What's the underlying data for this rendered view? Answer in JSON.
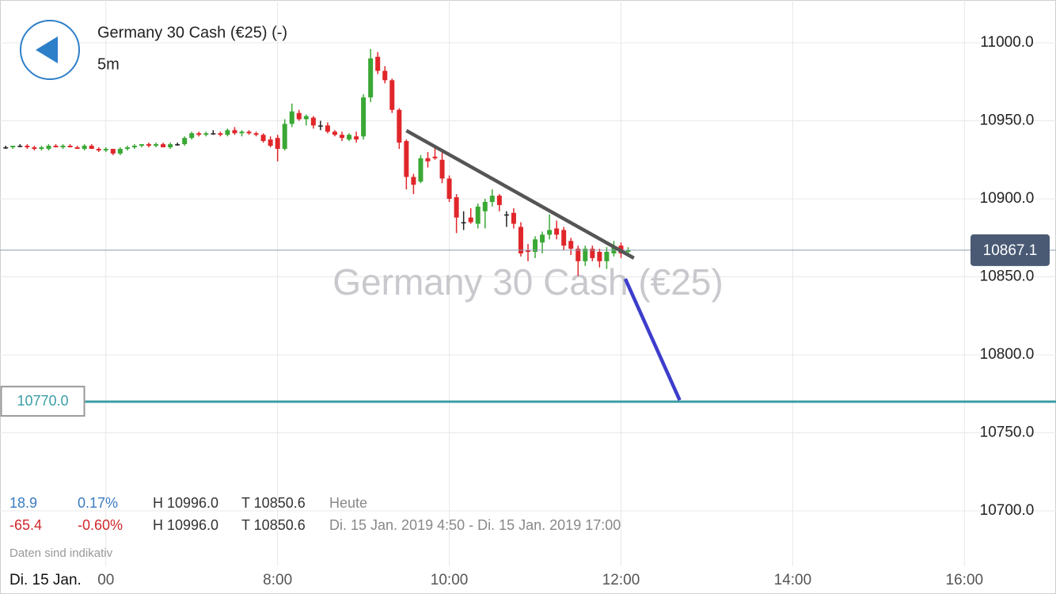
{
  "header": {
    "title": "Germany 30 Cash (€25) (-)",
    "interval": "5m",
    "watermark": "Germany 30 Cash (€25)"
  },
  "stats": [
    [
      "18.9",
      "0.17%",
      "H 10996.0",
      "T 10850.6",
      "Heute"
    ],
    [
      "-65.4",
      "-0.60%",
      "H 10996.0",
      "T 10850.6",
      "Di. 15 Jan. 2019 4:50 - Di. 15 Jan. 2019 17:00"
    ]
  ],
  "note": "Daten sind indikativ",
  "date_label": "Di. 15 Jan.",
  "chart_data": {
    "type": "candlestick",
    "x": [
      "4:50",
      "4:55",
      "5:00",
      "5:05",
      "5:10",
      "5:15",
      "5:20",
      "5:25",
      "5:30",
      "5:35",
      "5:40",
      "5:45",
      "5:50",
      "5:55",
      "6:00",
      "6:05",
      "6:10",
      "6:15",
      "6:20",
      "6:25",
      "6:30",
      "6:35",
      "6:40",
      "6:45",
      "6:50",
      "6:55",
      "7:00",
      "7:05",
      "7:10",
      "7:15",
      "7:20",
      "7:25",
      "7:30",
      "7:35",
      "7:40",
      "7:45",
      "7:50",
      "7:55",
      "8:00",
      "8:05",
      "8:10",
      "8:15",
      "8:20",
      "8:25",
      "8:30",
      "8:35",
      "8:40",
      "8:45",
      "8:50",
      "8:55",
      "9:00",
      "9:05",
      "9:10",
      "9:15",
      "9:20",
      "9:25",
      "9:30",
      "9:35",
      "9:40",
      "9:45",
      "9:50",
      "9:55",
      "10:00",
      "10:05",
      "10:10",
      "10:15",
      "10:20",
      "10:25",
      "10:30",
      "10:35",
      "10:40",
      "10:45",
      "10:50",
      "10:55",
      "11:00",
      "11:05",
      "11:10",
      "11:15",
      "11:20",
      "11:25",
      "11:30",
      "11:35",
      "11:40",
      "11:45",
      "11:50",
      "11:55",
      "12:00",
      "12:05"
    ],
    "open": [
      10933,
      10933,
      10934,
      10934,
      10933,
      10932,
      10932,
      10934,
      10933,
      10934,
      10933,
      10932,
      10934,
      10932,
      10931,
      10932,
      10929,
      10932,
      10933,
      10934,
      10935,
      10934,
      10935,
      10933,
      10935,
      10935,
      10939,
      10942,
      10941,
      10942,
      10942,
      10941,
      10944,
      10942,
      10943,
      10942,
      10941,
      10938,
      10939,
      10932,
      10948,
      10955,
      10951,
      10952,
      10947,
      10947,
      10943,
      10941,
      10938,
      10940,
      10940,
      10965,
      10991,
      10982,
      10976,
      10957,
      10937,
      10914,
      10911,
      10926,
      10927,
      10925,
      10913,
      10901,
      10885,
      10888,
      10884,
      10892,
      10898,
      10902,
      10890,
      10891,
      10882,
      10867,
      10866,
      10872,
      10877,
      10881,
      10880,
      10873,
      10868,
      10860,
      10868,
      10866,
      10860,
      10865,
      10870,
      10866
    ],
    "high": [
      10934,
      10934,
      10935,
      10935,
      10934,
      10934,
      10935,
      10935,
      10935,
      10935,
      10934,
      10935,
      10935,
      10933,
      10933,
      10932,
      10933,
      10934,
      10935,
      10935,
      10936,
      10936,
      10936,
      10936,
      10936,
      10940,
      10943,
      10943,
      10943,
      10944,
      10943,
      10945,
      10946,
      10944,
      10944,
      10943,
      10942,
      10940,
      10941,
      10951,
      10961,
      10957,
      10954,
      10953,
      10950,
      10949,
      10944,
      10943,
      10942,
      10943,
      10967,
      10996,
      10994,
      10985,
      10977,
      10958,
      10938,
      10916,
      10928,
      10930,
      10933,
      10931,
      10915,
      10903,
      10892,
      10894,
      10897,
      10900,
      10906,
      10903,
      10892,
      10894,
      10885,
      10871,
      10876,
      10879,
      10890,
      10886,
      10882,
      10875,
      10870,
      10870,
      10870,
      10868,
      10869,
      10873,
      10872,
      10869
    ],
    "low": [
      10932,
      10932,
      10933,
      10932,
      10931,
      10931,
      10931,
      10933,
      10932,
      10933,
      10932,
      10931,
      10932,
      10930,
      10930,
      10928,
      10928,
      10931,
      10932,
      10933,
      10933,
      10933,
      10933,
      10932,
      10934,
      10934,
      10938,
      10940,
      10940,
      10941,
      10940,
      10940,
      10941,
      10940,
      10941,
      10940,
      10936,
      10933,
      10924,
      10931,
      10946,
      10950,
      10947,
      10945,
      10944,
      10942,
      10940,
      10937,
      10937,
      10936,
      10938,
      10962,
      10980,
      10974,
      10955,
      10932,
      10906,
      10903,
      10910,
      10920,
      10925,
      10910,
      10898,
      10878,
      10880,
      10884,
      10881,
      10881,
      10895,
      10892,
      10882,
      10881,
      10863,
      10860,
      10862,
      10865,
      10874,
      10874,
      10867,
      10864,
      10850.6,
      10857,
      10860,
      10856,
      10855,
      10863,
      10862,
      10865
    ],
    "close": [
      10933,
      10934,
      10934,
      10933,
      10932,
      10933,
      10934,
      10933,
      10934,
      10933,
      10932,
      10934,
      10932,
      10931,
      10932,
      10929,
      10932,
      10933,
      10934,
      10935,
      10934,
      10935,
      10933,
      10935,
      10935,
      10939,
      10942,
      10941,
      10942,
      10942,
      10941,
      10944,
      10942,
      10943,
      10942,
      10941,
      10937,
      10934,
      10932,
      10948,
      10956,
      10951,
      10953,
      10947,
      10947,
      10943,
      10941,
      10939,
      10941,
      10938,
      10965,
      10990,
      10982,
      10976,
      10957,
      10936,
      10914,
      10909,
      10926,
      10924,
      10926,
      10913,
      10900,
      10888,
      10885,
      10885,
      10895,
      10898,
      10902,
      10896,
      10890,
      10884,
      10865,
      10866,
      10874,
      10877,
      10880,
      10877,
      10870,
      10868,
      10860,
      10868,
      10862,
      10860,
      10866,
      10869,
      10865,
      10867.1
    ],
    "up_color": "#3aa835",
    "down_color": "#e0262a",
    "flat_color": "#222222",
    "xlim": [
      "4:46",
      "17:04"
    ],
    "xticks": [
      {
        "value": "6:00",
        "label": "00"
      },
      "8:00",
      "10:00",
      "12:00",
      "14:00",
      "16:00"
    ],
    "ylim": [
      10664.5,
      11027.4
    ],
    "yticks": [
      {
        "value": 10700,
        "label": "10700.0"
      },
      {
        "value": 10750,
        "label": "10750.0"
      },
      {
        "value": 10800,
        "label": "10800.0"
      },
      {
        "value": 10850,
        "label": "10850.0"
      },
      {
        "value": 10900,
        "label": "10900.0"
      },
      {
        "value": 10950,
        "label": "10950.0"
      },
      {
        "value": 11000,
        "label": "11000.0"
      }
    ],
    "grid": true,
    "current_price": 10867.1,
    "level": {
      "value": 10770,
      "label": "10770.0"
    },
    "lines": [
      {
        "x": [
          "9:30",
          "12:09"
        ],
        "y": [
          10943.7,
          10862
        ],
        "color": "#555555"
      },
      {
        "x": [
          "12:03",
          "12:41"
        ],
        "y": [
          10848.7,
          10771
        ],
        "color": "#3d3dcc"
      }
    ]
  }
}
